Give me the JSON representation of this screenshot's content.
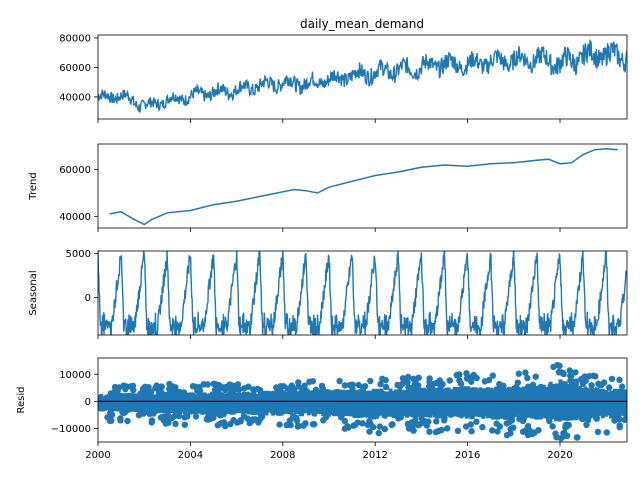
{
  "title": "daily_mean_demand",
  "series_color": "#1f77b4",
  "chart_data": {
    "type": "line",
    "title": "daily_mean_demand",
    "x_tick_labels": [
      "2000",
      "2004",
      "2008",
      "2012",
      "2016",
      "2020"
    ],
    "xlim": [
      2000.0,
      2022.9
    ],
    "panels": [
      {
        "name": "observed",
        "ylabel": "",
        "ylim": [
          25000,
          82000
        ],
        "yticks": [
          40000,
          60000,
          80000
        ],
        "ytick_labels": [
          "40000",
          "60000",
          "80000"
        ],
        "style": "band",
        "x": [
          2000,
          2000.5,
          2001,
          2001.3,
          2001.8,
          2002.3,
          2003,
          2004,
          2005,
          2006,
          2007,
          2008,
          2009,
          2010,
          2011,
          2012,
          2013,
          2014,
          2015,
          2016,
          2017,
          2018,
          2019,
          2020,
          2020.5,
          2021,
          2021.5,
          2022,
          2022.9
        ],
        "upper": [
          46000,
          46000,
          47000,
          45000,
          42000,
          40000,
          44000,
          47000,
          50000,
          52000,
          55000,
          58000,
          57000,
          60000,
          63000,
          66000,
          67000,
          70000,
          72000,
          71000,
          74000,
          75000,
          76000,
          74000,
          76000,
          79000,
          80000,
          80000,
          79000
        ],
        "lower": [
          34000,
          34000,
          35000,
          33000,
          28000,
          29000,
          32000,
          34000,
          36000,
          38000,
          40000,
          42000,
          41000,
          44000,
          46000,
          48000,
          49000,
          51000,
          53000,
          53000,
          54000,
          55000,
          56000,
          52000,
          53000,
          56000,
          57000,
          57000,
          56000
        ],
        "peak_period": 1.0
      },
      {
        "name": "trend",
        "ylabel": "Trend",
        "ylim": [
          35000,
          71000
        ],
        "yticks": [
          40000,
          60000
        ],
        "ytick_labels": [
          "40000",
          "60000"
        ],
        "style": "line",
        "x": [
          2000.5,
          2001,
          2001.5,
          2002,
          2002.3,
          2003,
          2004,
          2005,
          2006,
          2007,
          2008,
          2008.5,
          2009,
          2009.5,
          2010,
          2011,
          2012,
          2013,
          2014,
          2015,
          2016,
          2017,
          2018,
          2019,
          2019.5,
          2020,
          2020.5,
          2021,
          2021.5,
          2022,
          2022.5
        ],
        "y": [
          41000,
          42000,
          39000,
          36500,
          38500,
          41500,
          42500,
          45000,
          46500,
          48500,
          50500,
          51500,
          51000,
          50000,
          52500,
          55000,
          57500,
          59000,
          61000,
          62000,
          61500,
          62500,
          63000,
          64000,
          64500,
          62500,
          63000,
          66500,
          68500,
          69000,
          68500
        ]
      },
      {
        "name": "seasonal",
        "ylabel": "Seasonal",
        "ylim": [
          -4300,
          5300
        ],
        "yticks": [
          0,
          5000
        ],
        "ytick_labels": [
          "0",
          "5000"
        ],
        "style": "seasonal",
        "amplitude_high": 5000,
        "amplitude_low": -4000,
        "period": 1.0
      },
      {
        "name": "resid",
        "ylabel": "Resid",
        "ylim": [
          -15000,
          16000
        ],
        "yticks": [
          -10000,
          0,
          10000
        ],
        "ytick_labels": [
          "−10000",
          "0",
          "10000"
        ],
        "style": "scatter",
        "x": [
          2000,
          2001,
          2002,
          2003,
          2004,
          2005,
          2006,
          2007,
          2008,
          2009,
          2010,
          2011,
          2012,
          2013,
          2014,
          2015,
          2016,
          2017,
          2018,
          2019,
          2020,
          2021,
          2022,
          2022.9
        ],
        "upper": [
          5000,
          6000,
          5500,
          6500,
          6000,
          6500,
          6500,
          7000,
          7500,
          7000,
          8500,
          8000,
          9000,
          9500,
          10000,
          9500,
          10500,
          10000,
          10500,
          11000,
          15000,
          10500,
          9000,
          8500
        ],
        "lower": [
          -7000,
          -7500,
          -8000,
          -8500,
          -9000,
          -9000,
          -9500,
          -9500,
          -10000,
          -10000,
          -10500,
          -11000,
          -12500,
          -11000,
          -11500,
          -12000,
          -12000,
          -12500,
          -12500,
          -12500,
          -14500,
          -13000,
          -12000,
          -11500
        ]
      }
    ]
  }
}
